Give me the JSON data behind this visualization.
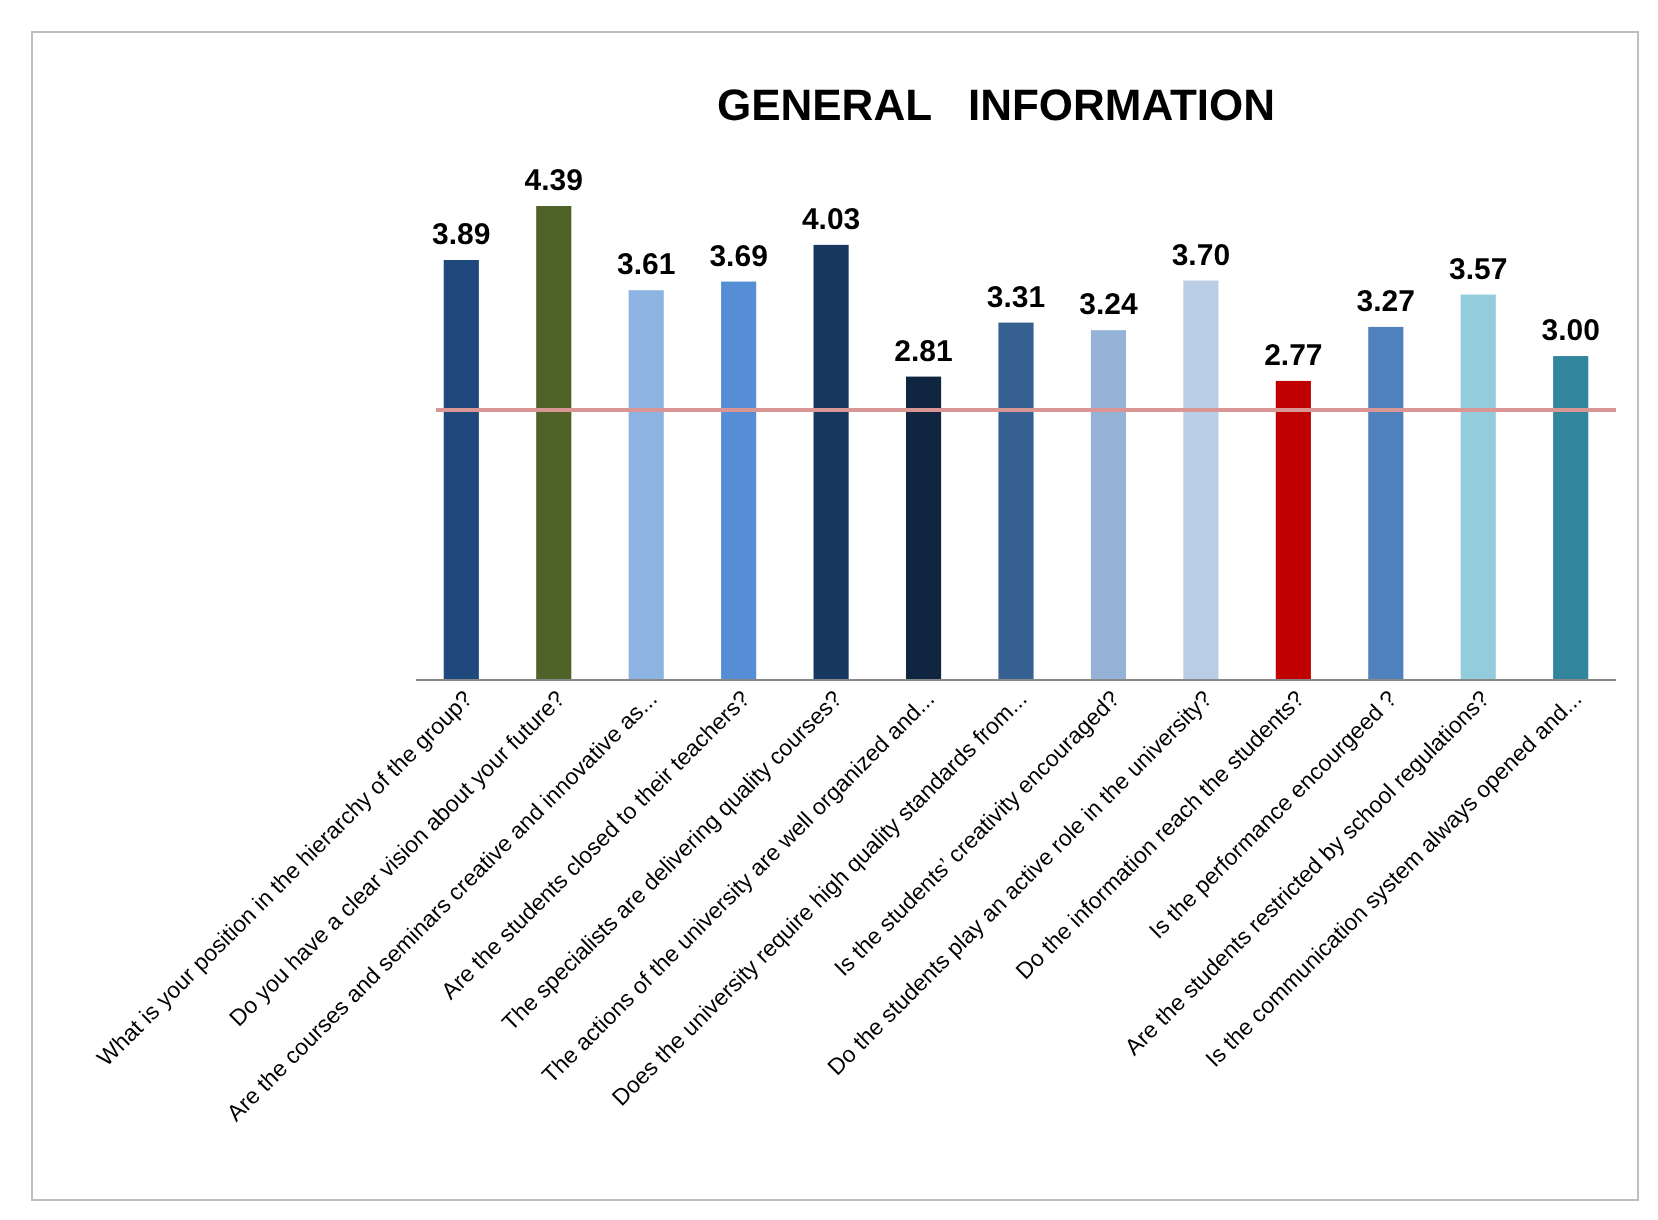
{
  "chart_data": {
    "type": "bar",
    "title": "GENERAL   INFORMATION",
    "categories": [
      "What is your position in the hierarchy of the group?",
      "Do you have a clear vision about your future?",
      "Are the courses and seminars creative and innovative as...",
      "Are the students closed to their teachers?",
      "The specialists are delivering quality courses?",
      "The actions of the university are well organized and...",
      "Does the university require high quality standards from...",
      "Is the students’ creativity encouraged?",
      "Do the students play an active role in the university?",
      "Do the information reach the students?",
      "Is the performance encourgeed ?",
      "Are the students restricted by school regulations?",
      "Is the communication system always opened and..."
    ],
    "values": [
      3.89,
      4.39,
      3.61,
      3.69,
      4.03,
      2.81,
      3.31,
      3.24,
      3.7,
      2.77,
      3.27,
      3.57,
      3.0
    ],
    "value_labels": [
      "3.89",
      "4.39",
      "3.61",
      "3.69",
      "4.03",
      "2.81",
      "3.31",
      "3.24",
      "3.70",
      "2.77",
      "3.27",
      "3.57",
      "3.00"
    ],
    "colors": [
      "#1f497d",
      "#4f6228",
      "#8db3e2",
      "#558ed5",
      "#17375e",
      "#10253f",
      "#376092",
      "#95b3d7",
      "#b9cde5",
      "#c00000",
      "#4f81bd",
      "#93cddd",
      "#31859c"
    ],
    "ref_lines": [
      {
        "axis": "y",
        "value": 2.5,
        "color": "#d99694"
      }
    ]
  }
}
